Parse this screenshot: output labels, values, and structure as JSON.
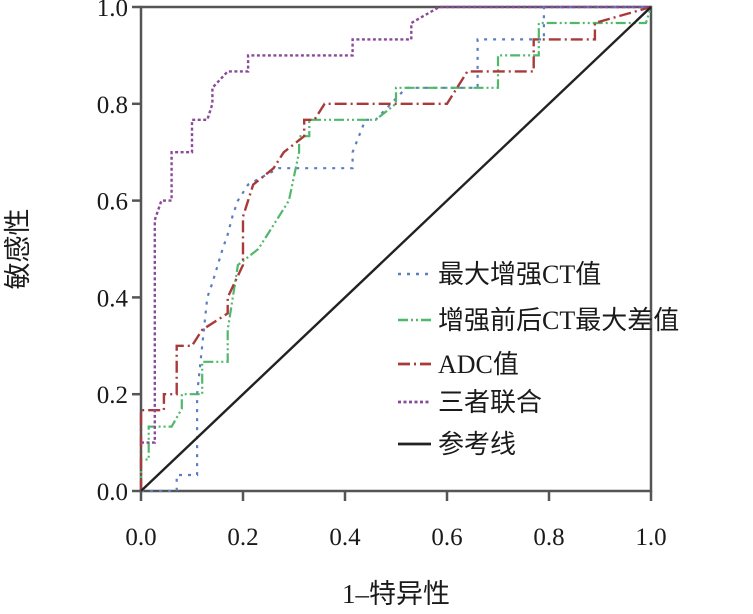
{
  "chart_data": {
    "type": "line",
    "title": "",
    "xlabel": "1–特异性",
    "ylabel": "敏感性",
    "xlim": [
      0,
      1
    ],
    "ylim": [
      0,
      1
    ],
    "xticks": [
      "0.0",
      "0.2",
      "0.4",
      "0.6",
      "0.8",
      "1.0"
    ],
    "yticks": [
      "0.0",
      "0.2",
      "0.4",
      "0.6",
      "0.8",
      "1.0"
    ],
    "xtick_values": [
      0,
      0.2,
      0.4,
      0.6,
      0.8,
      1.0
    ],
    "ytick_values": [
      0,
      0.2,
      0.4,
      0.6,
      0.8,
      1.0
    ],
    "grid": false,
    "legend_position": "center-right",
    "series": [
      {
        "name": "最大增强CT值",
        "color": "#5b7ec0",
        "dash": "dotted-blue",
        "x": [
          0,
          0.07,
          0.07,
          0.11,
          0.11,
          0.12,
          0.13,
          0.14,
          0.16,
          0.17,
          0.18,
          0.19,
          0.21,
          0.27,
          0.415,
          0.415,
          0.44,
          0.46,
          0.49,
          0.52,
          0.52,
          0.66,
          0.66,
          0.79,
          0.79,
          1.0
        ],
        "y": [
          0,
          0,
          0.033,
          0.033,
          0.2,
          0.3,
          0.4,
          0.43,
          0.5,
          0.53,
          0.57,
          0.6,
          0.633,
          0.667,
          0.667,
          0.7,
          0.767,
          0.767,
          0.8,
          0.833,
          0.833,
          0.833,
          0.933,
          0.933,
          1.0,
          1.0
        ]
      },
      {
        "name": "增强前后CT最大差值",
        "color": "#4fb86a",
        "dash": "dashdotdot-green",
        "x": [
          0,
          0,
          0.015,
          0.015,
          0.06,
          0.08,
          0.08,
          0.12,
          0.12,
          0.17,
          0.17,
          0.19,
          0.23,
          0.25,
          0.29,
          0.31,
          0.31,
          0.33,
          0.33,
          0.46,
          0.5,
          0.5,
          0.55,
          0.7,
          0.7,
          0.78,
          0.78,
          0.99,
          1.0
        ],
        "y": [
          0,
          0.065,
          0.065,
          0.133,
          0.133,
          0.17,
          0.2,
          0.2,
          0.267,
          0.267,
          0.333,
          0.467,
          0.5,
          0.533,
          0.6,
          0.7,
          0.733,
          0.733,
          0.767,
          0.767,
          0.8,
          0.833,
          0.833,
          0.833,
          0.9,
          0.9,
          0.967,
          0.967,
          1.0
        ]
      },
      {
        "name": "ADC值",
        "color": "#a83a3a",
        "dash": "dashdot-red",
        "x": [
          0,
          0,
          0.045,
          0.045,
          0.07,
          0.07,
          0.1,
          0.12,
          0.17,
          0.17,
          0.2,
          0.2,
          0.21,
          0.22,
          0.26,
          0.28,
          0.32,
          0.32,
          0.34,
          0.36,
          0.6,
          0.64,
          0.77,
          0.77,
          0.89,
          0.89,
          1.0
        ],
        "y": [
          0,
          0.167,
          0.167,
          0.2,
          0.2,
          0.3,
          0.3,
          0.333,
          0.367,
          0.4,
          0.467,
          0.567,
          0.6,
          0.633,
          0.667,
          0.7,
          0.733,
          0.767,
          0.767,
          0.8,
          0.8,
          0.867,
          0.867,
          0.933,
          0.933,
          0.967,
          1.0
        ]
      },
      {
        "name": "三者联合",
        "color": "#8a4a9a",
        "dash": "dotted-purple",
        "x": [
          0,
          0.027,
          0.027,
          0.04,
          0.06,
          0.06,
          0.1,
          0.1,
          0.13,
          0.14,
          0.14,
          0.17,
          0.21,
          0.21,
          0.415,
          0.415,
          0.53,
          0.53,
          0.585,
          1.0
        ],
        "y": [
          0.1,
          0.1,
          0.56,
          0.6,
          0.6,
          0.7,
          0.7,
          0.767,
          0.767,
          0.8,
          0.833,
          0.867,
          0.867,
          0.9,
          0.9,
          0.933,
          0.933,
          0.967,
          1.0,
          1.0
        ]
      },
      {
        "name": "参考线",
        "color": "#222222",
        "dash": "solid-black",
        "x": [
          0,
          1
        ],
        "y": [
          0,
          1
        ]
      }
    ]
  }
}
